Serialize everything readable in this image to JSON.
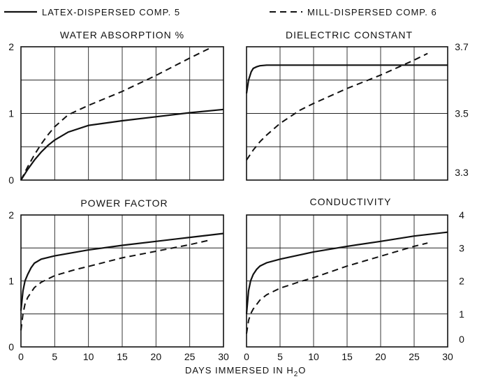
{
  "legend": {
    "solid_label": "LATEX-DISPERSED COMP. 5",
    "dashed_label": "MILL-DISPERSED COMP. 6"
  },
  "xlabel_main": "DAYS IMMERSED IN H",
  "xlabel_sub": "2",
  "xlabel_tail": "O",
  "colors": {
    "ink": "#111111",
    "background": "#ffffff"
  },
  "chart_data": [
    {
      "type": "line",
      "title": "WATER ABSORPTION %",
      "xlim": [
        0,
        30
      ],
      "ylim": [
        0,
        2
      ],
      "grid": true,
      "y_ticks": [
        "2",
        "1",
        "0"
      ],
      "y_axis_side": "left",
      "x_ticks": [],
      "series": [
        {
          "name": "LATEX-DISPERSED COMP. 5",
          "style": "solid",
          "x": [
            0,
            1,
            2,
            3,
            4,
            5,
            7,
            10,
            15,
            20,
            25,
            30
          ],
          "y": [
            0,
            0.16,
            0.3,
            0.42,
            0.52,
            0.6,
            0.72,
            0.82,
            0.89,
            0.95,
            1.01,
            1.06
          ]
        },
        {
          "name": "MILL-DISPERSED COMP. 6",
          "style": "dashed",
          "x": [
            0,
            1,
            2,
            3,
            4,
            5,
            7,
            10,
            15,
            20,
            25,
            28
          ],
          "y": [
            0,
            0.2,
            0.38,
            0.54,
            0.68,
            0.8,
            0.98,
            1.12,
            1.33,
            1.57,
            1.83,
            1.98
          ]
        }
      ]
    },
    {
      "type": "line",
      "title": "DIELECTRIC CONSTANT",
      "xlim": [
        0,
        30
      ],
      "ylim": [
        3.3,
        3.7
      ],
      "grid": true,
      "y_ticks": [
        "3.7",
        "3.5",
        "3.3"
      ],
      "y_axis_side": "right",
      "x_ticks": [],
      "series": [
        {
          "name": "LATEX-DISPERSED COMP. 5",
          "style": "solid",
          "x": [
            0,
            0.3,
            0.7,
            1,
            1.5,
            2,
            3,
            5,
            10,
            20,
            30
          ],
          "y": [
            3.56,
            3.6,
            3.625,
            3.635,
            3.64,
            3.643,
            3.645,
            3.645,
            3.645,
            3.645,
            3.645
          ]
        },
        {
          "name": "MILL-DISPERSED COMP. 6",
          "style": "dashed",
          "x": [
            0,
            1,
            2,
            3,
            5,
            8,
            10,
            15,
            20,
            25,
            27
          ],
          "y": [
            3.36,
            3.39,
            3.415,
            3.435,
            3.47,
            3.51,
            3.53,
            3.575,
            3.615,
            3.66,
            3.68
          ]
        }
      ]
    },
    {
      "type": "line",
      "title": "POWER FACTOR",
      "xlim": [
        0,
        30
      ],
      "ylim": [
        0,
        2
      ],
      "grid": true,
      "y_ticks": [
        "2",
        "1",
        "0"
      ],
      "y_axis_side": "left",
      "x_ticks": [
        "0",
        "5",
        "10",
        "15",
        "20",
        "25",
        "30"
      ],
      "series": [
        {
          "name": "LATEX-DISPERSED COMP. 5",
          "style": "solid",
          "x": [
            0,
            0.3,
            0.6,
            1,
            1.5,
            2,
            3,
            5,
            10,
            15,
            20,
            25,
            30
          ],
          "y": [
            0.55,
            0.85,
            1.0,
            1.1,
            1.2,
            1.27,
            1.33,
            1.38,
            1.47,
            1.54,
            1.6,
            1.66,
            1.72
          ]
        },
        {
          "name": "MILL-DISPERSED COMP. 6",
          "style": "dashed",
          "x": [
            0,
            0.3,
            0.6,
            1,
            2,
            3,
            5,
            8,
            10,
            15,
            20,
            25,
            28
          ],
          "y": [
            0.25,
            0.5,
            0.65,
            0.75,
            0.9,
            0.98,
            1.08,
            1.17,
            1.22,
            1.35,
            1.45,
            1.55,
            1.62
          ]
        }
      ]
    },
    {
      "type": "line",
      "title": "CONDUCTIVITY",
      "xlim": [
        0,
        30
      ],
      "ylim": [
        0,
        4
      ],
      "grid": true,
      "y_ticks": [
        "4",
        "3",
        "2",
        "1",
        "0"
      ],
      "y_axis_side": "right",
      "x_ticks": [
        "0",
        "5",
        "10",
        "15",
        "20",
        "25",
        "30"
      ],
      "series": [
        {
          "name": "LATEX-DISPERSED COMP. 5",
          "style": "solid",
          "x": [
            0,
            0.3,
            0.6,
            1,
            1.5,
            2,
            3,
            5,
            10,
            15,
            20,
            25,
            30
          ],
          "y": [
            1.0,
            1.7,
            2.0,
            2.2,
            2.35,
            2.45,
            2.55,
            2.66,
            2.88,
            3.05,
            3.2,
            3.36,
            3.48
          ]
        },
        {
          "name": "MILL-DISPERSED COMP. 6",
          "style": "dashed",
          "x": [
            0,
            0.3,
            0.6,
            1,
            2,
            3,
            5,
            8,
            10,
            15,
            20,
            25,
            27
          ],
          "y": [
            0.4,
            0.8,
            1.0,
            1.15,
            1.42,
            1.58,
            1.78,
            1.98,
            2.1,
            2.45,
            2.75,
            3.05,
            3.15
          ]
        }
      ]
    }
  ]
}
